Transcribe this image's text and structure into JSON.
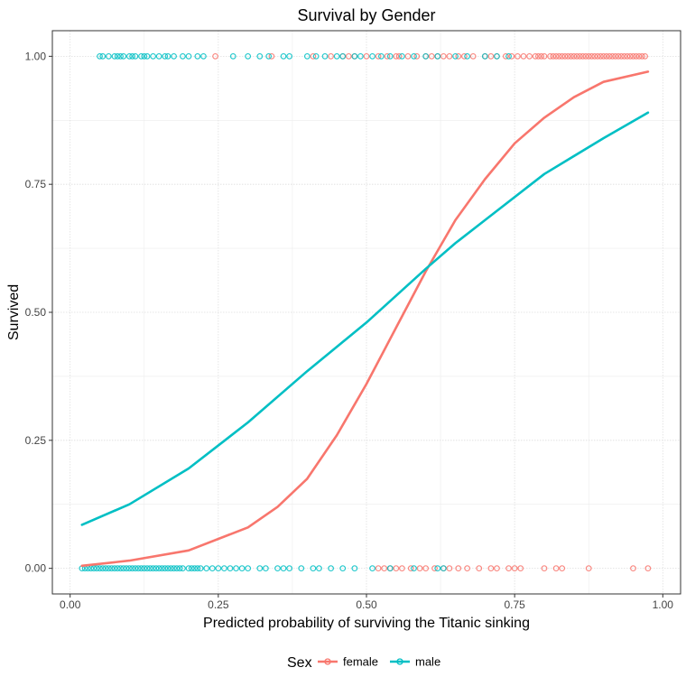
{
  "chart_data": {
    "type": "scatter",
    "title": "Survival by Gender",
    "xlabel": "Predicted probability of surviving the Titanic sinking",
    "ylabel": "Survived",
    "xlim": [
      -0.03,
      1.03
    ],
    "ylim": [
      -0.05,
      1.05
    ],
    "x_ticks": [
      0,
      0.25,
      0.5,
      0.75,
      1
    ],
    "x_tick_labels": [
      "0.00",
      "0.25",
      "0.50",
      "0.75",
      "1.00"
    ],
    "y_ticks": [
      0,
      0.25,
      0.5,
      0.75,
      1
    ],
    "y_tick_labels": [
      "0.00",
      "0.25",
      "0.50",
      "0.75",
      "1.00"
    ],
    "grid": true,
    "legend": {
      "title": "Sex",
      "position": "bottom",
      "entries": [
        "female",
        "male"
      ]
    },
    "series": [
      {
        "name": "female",
        "color": "#F8766D",
        "points": {
          "survived_1": [
            0.245,
            0.34,
            0.41,
            0.44,
            0.46,
            0.47,
            0.48,
            0.5,
            0.52,
            0.535,
            0.55,
            0.555,
            0.57,
            0.585,
            0.6,
            0.61,
            0.62,
            0.63,
            0.64,
            0.655,
            0.665,
            0.68,
            0.7,
            0.71,
            0.72,
            0.735,
            0.745,
            0.755,
            0.765,
            0.775,
            0.785,
            0.79,
            0.795,
            0.8,
            0.81,
            0.815,
            0.82,
            0.825,
            0.83,
            0.835,
            0.84,
            0.845,
            0.85,
            0.855,
            0.86,
            0.865,
            0.87,
            0.875,
            0.88,
            0.885,
            0.89,
            0.895,
            0.9,
            0.905,
            0.91,
            0.915,
            0.92,
            0.925,
            0.93,
            0.935,
            0.94,
            0.945,
            0.95,
            0.955,
            0.96,
            0.965,
            0.97
          ],
          "survived_0": [
            0.52,
            0.53,
            0.54,
            0.55,
            0.56,
            0.575,
            0.59,
            0.6,
            0.615,
            0.63,
            0.64,
            0.655,
            0.67,
            0.69,
            0.71,
            0.72,
            0.74,
            0.75,
            0.76,
            0.8,
            0.82,
            0.83,
            0.875,
            0.95,
            0.975
          ]
        },
        "fit": {
          "x": [
            0.02,
            0.1,
            0.2,
            0.3,
            0.35,
            0.4,
            0.45,
            0.5,
            0.55,
            0.6,
            0.65,
            0.7,
            0.75,
            0.8,
            0.85,
            0.9,
            0.975
          ],
          "y": [
            0.005,
            0.015,
            0.035,
            0.08,
            0.12,
            0.175,
            0.26,
            0.36,
            0.47,
            0.58,
            0.68,
            0.76,
            0.83,
            0.88,
            0.92,
            0.95,
            0.97
          ]
        }
      },
      {
        "name": "male",
        "color": "#00BFC4",
        "points": {
          "survived_1": [
            0.05,
            0.055,
            0.065,
            0.075,
            0.08,
            0.085,
            0.09,
            0.1,
            0.105,
            0.11,
            0.12,
            0.125,
            0.13,
            0.14,
            0.15,
            0.16,
            0.165,
            0.175,
            0.19,
            0.2,
            0.215,
            0.225,
            0.275,
            0.3,
            0.32,
            0.335,
            0.36,
            0.37,
            0.4,
            0.415,
            0.43,
            0.45,
            0.46,
            0.48,
            0.49,
            0.51,
            0.525,
            0.54,
            0.56,
            0.58,
            0.6,
            0.62,
            0.65,
            0.67,
            0.7,
            0.72,
            0.74
          ],
          "survived_0": [
            0.02,
            0.025,
            0.03,
            0.035,
            0.04,
            0.045,
            0.05,
            0.055,
            0.06,
            0.065,
            0.07,
            0.075,
            0.08,
            0.085,
            0.09,
            0.095,
            0.1,
            0.105,
            0.11,
            0.115,
            0.12,
            0.125,
            0.13,
            0.135,
            0.14,
            0.145,
            0.15,
            0.155,
            0.16,
            0.165,
            0.17,
            0.175,
            0.18,
            0.185,
            0.19,
            0.2,
            0.205,
            0.21,
            0.215,
            0.22,
            0.23,
            0.24,
            0.25,
            0.26,
            0.27,
            0.28,
            0.29,
            0.3,
            0.32,
            0.33,
            0.35,
            0.36,
            0.37,
            0.39,
            0.41,
            0.42,
            0.44,
            0.46,
            0.48,
            0.51,
            0.54,
            0.58,
            0.62,
            0.63
          ]
        },
        "fit": {
          "x": [
            0.02,
            0.1,
            0.2,
            0.3,
            0.4,
            0.5,
            0.6,
            0.65,
            0.7,
            0.8,
            0.9,
            0.975
          ],
          "y": [
            0.085,
            0.125,
            0.195,
            0.285,
            0.385,
            0.48,
            0.585,
            0.635,
            0.68,
            0.77,
            0.84,
            0.89
          ]
        }
      }
    ]
  }
}
